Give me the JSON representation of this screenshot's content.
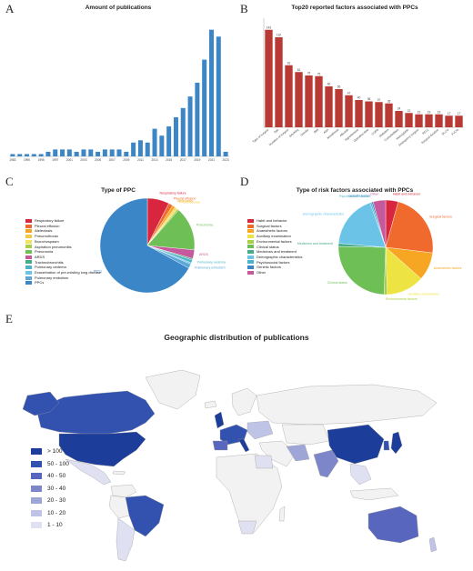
{
  "panel_letters": {
    "a": "A",
    "b": "B",
    "c": "C",
    "d": "D",
    "e": "E"
  },
  "chart_data": [
    {
      "id": "A",
      "type": "bar",
      "title": "Amount of publications",
      "xlabel": "",
      "ylabel": "",
      "color": "#3c86c6",
      "tick_labels": [
        "1983",
        "1990",
        "1995",
        "1997",
        "2001",
        "2003",
        "2005",
        "2007",
        "2009",
        "2011",
        "2013",
        "2015",
        "2017",
        "2019",
        "2021",
        "2023"
      ],
      "categories": [
        "1983",
        "1986",
        "1990",
        "1992",
        "1995",
        "1996",
        "1997",
        "1999",
        "2001",
        "2002",
        "2003",
        "2004",
        "2005",
        "2006",
        "2007",
        "2008",
        "2009",
        "2010",
        "2011",
        "2012",
        "2013",
        "2014",
        "2015",
        "2016",
        "2017",
        "2018",
        "2019",
        "2020",
        "2021",
        "2022",
        "2023"
      ],
      "values": [
        1,
        1,
        1,
        1,
        1,
        2,
        3,
        3,
        3,
        2,
        3,
        3,
        2,
        3,
        3,
        3,
        2,
        6,
        7,
        6,
        12,
        9,
        13,
        17,
        21,
        26,
        32,
        42,
        55,
        52,
        2
      ],
      "ylim": [
        0,
        60
      ]
    },
    {
      "id": "B",
      "type": "bar",
      "title": "Top20 reported factors associated with PPCs",
      "xlabel": "",
      "ylabel": "",
      "color": "#b93a34",
      "categories": [
        "Type of surgery",
        "Age",
        "Duration of surgery",
        "Smoking",
        "Gender",
        "BMI",
        "ASA",
        "Anesthesia",
        "Albumin",
        "Hypertension",
        "Operative time",
        "COPD",
        "Diabetes",
        "Comorbidities",
        "Hemoglobin",
        "Emergency surgery",
        "FEV1",
        "Surgical duration",
        "DLCO",
        "FVC%"
      ],
      "values": [
        143,
        132,
        91,
        81,
        76,
        75,
        60,
        56,
        47,
        40,
        38,
        37,
        35,
        24,
        21,
        19,
        19,
        19,
        17,
        17
      ],
      "ylim": [
        0,
        160
      ]
    },
    {
      "id": "C",
      "type": "pie",
      "title": "Type of PPC",
      "labels": [
        "Respiratory failure",
        "Pleural effusion",
        "Atelectasis",
        "Pneumothorax",
        "Bronchospasm",
        "Aspiration pneumonitis",
        "Pneumonia",
        "ARDS",
        "Tracheobronchitis",
        "Pulmonary oedema",
        "Exacerbation of pre-existing lung disease",
        "Pulmonary embolism",
        "PPCs"
      ],
      "values": [
        7.5,
        1.5,
        1,
        0.5,
        0.5,
        0.5,
        15,
        3,
        0.5,
        1,
        0.5,
        1.5,
        67
      ],
      "colors": [
        "#d7263d",
        "#ef6a2c",
        "#f6a623",
        "#f4c945",
        "#f2e35e",
        "#a8cf45",
        "#6fbf57",
        "#c6589c",
        "#45ad8a",
        "#4bb3c9",
        "#6cc3e8",
        "#5aa8d6",
        "#3b86c7"
      ],
      "callouts": [
        "Respiratory failure",
        "Pleural effusion",
        "Atelectasis",
        "Pneumothorax",
        "Pneumonia",
        "ARDS",
        "Pulmonary oedema",
        "Pulmonary embolism",
        "PPCs"
      ]
    },
    {
      "id": "D",
      "type": "pie",
      "title": "Type of risk factors associated with PPCs",
      "labels": [
        "Habit and behavior",
        "Surgical factors",
        "Anaesthetic factors",
        "Auxiliary examination",
        "Environmental factors",
        "Clinical status",
        "Medicines and treatment",
        "Demographic characteristics",
        "Psychosocial factors",
        "Genetic factors",
        "Other"
      ],
      "values": [
        4,
        21,
        9,
        12,
        1,
        23,
        1,
        17,
        0.5,
        0.5,
        4
      ],
      "colors": [
        "#d7263d",
        "#ef6a2c",
        "#f6a623",
        "#ede443",
        "#a8cf45",
        "#6fbf57",
        "#45ad8a",
        "#6cc3e8",
        "#4bb3c9",
        "#3b86c7",
        "#c6589c"
      ],
      "callouts": [
        "Habit and behavior",
        "Surgical factors",
        "Anaesthetic factors",
        "Auxiliary examination",
        "Environmental factors",
        "Clinical status",
        "Medicines and treatment",
        "Demographic characteristics",
        "Psychosocial factors",
        "Genetic factors",
        "Other"
      ]
    }
  ],
  "map": {
    "title": "Geographic distribution of  publications",
    "legend": [
      {
        "label": "> 100",
        "color": "#1d3d9a"
      },
      {
        "label": "50 - 100",
        "color": "#3352b0"
      },
      {
        "label": "40 - 50",
        "color": "#5867bd"
      },
      {
        "label": "30 - 40",
        "color": "#7d86c9"
      },
      {
        "label": "20 - 30",
        "color": "#9ea6d8"
      },
      {
        "label": "10 - 20",
        "color": "#bfc3e6"
      },
      {
        "label": "1 - 10",
        "color": "#dfe1f2"
      }
    ],
    "ocean_color": "#ffffff",
    "land_color": "#f2f2f2"
  }
}
